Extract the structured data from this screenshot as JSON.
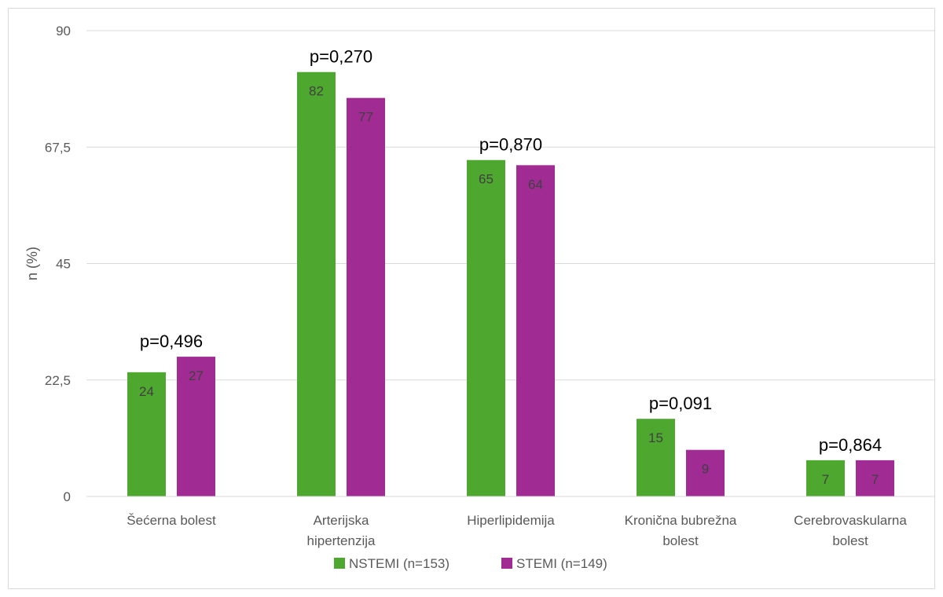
{
  "chart_data": {
    "type": "bar",
    "categories": [
      [
        "Šećerna bolest"
      ],
      [
        "Arterijska",
        "hipertenzija"
      ],
      [
        "Hiperlipidemija"
      ],
      [
        "Kronična bubrežna",
        "bolest"
      ],
      [
        "Cerebrovaskularna",
        "bolest"
      ]
    ],
    "series": [
      {
        "name": "NSTEMI (n=153)",
        "color": "#4ea72e",
        "values": [
          24,
          82,
          65,
          15,
          7
        ]
      },
      {
        "name": "STEMI (n=149)",
        "color": "#a02b93",
        "values": [
          27,
          77,
          64,
          9,
          7
        ]
      }
    ],
    "annotations": [
      "p=0,496",
      "p=0,270",
      "p=0,870",
      "p=0,091",
      "p=0,864"
    ],
    "ylabel": "n (%)",
    "ylim": [
      0,
      90
    ],
    "yticks": [
      "0",
      "22,5",
      "45",
      "67,5",
      "90"
    ],
    "grid": true,
    "legend_position": "bottom"
  }
}
